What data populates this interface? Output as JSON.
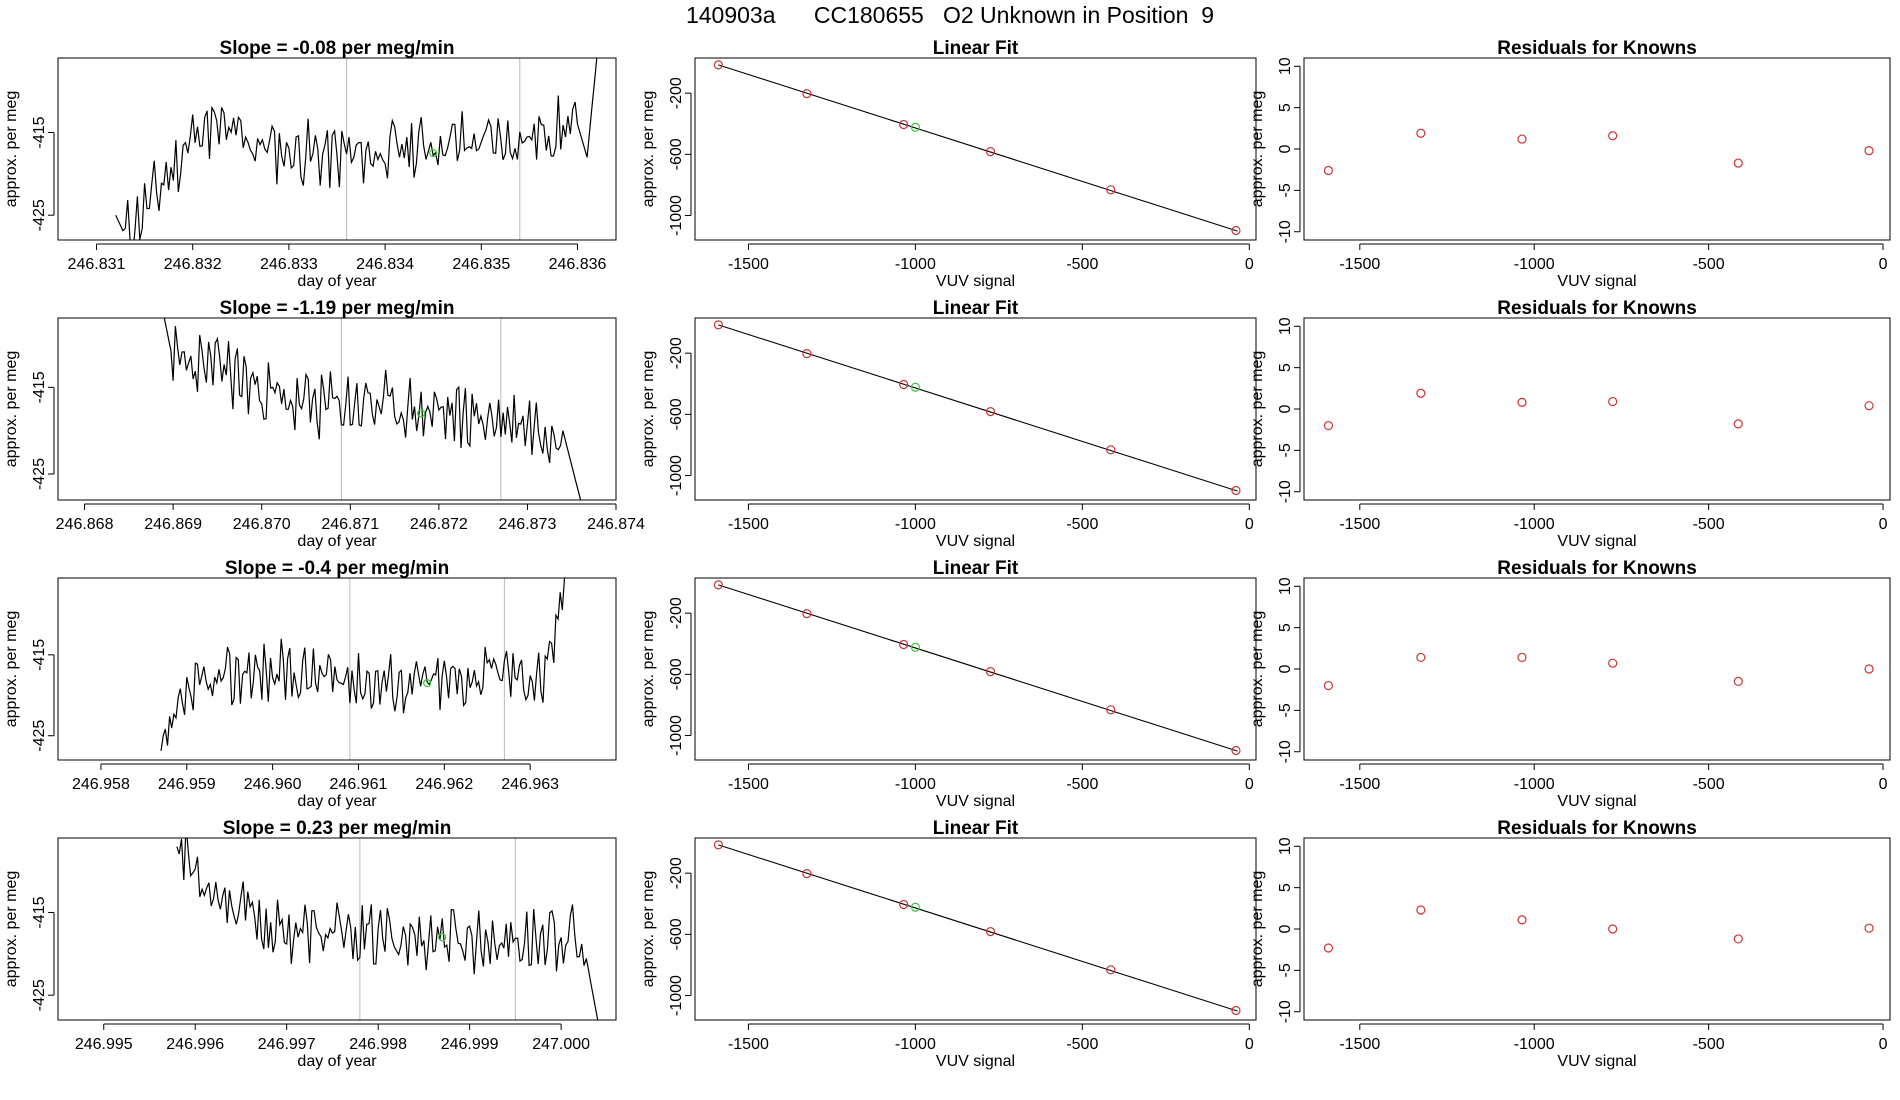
{
  "figure": {
    "title": "140903a      CC180655   O2 Unknown in Position  9"
  },
  "colors": {
    "trace": "#000000",
    "known_point": "#cc3333",
    "unknown_point": "#33cc33",
    "guide_line": "#bbbbbb"
  },
  "chart_data": [
    {
      "row": 1,
      "type": "line",
      "title": "Slope =  -0.08  per meg/min",
      "xlabel": "day of year",
      "ylabel": "approx. per meg",
      "xlim": [
        246.8306,
        246.8364
      ],
      "ylim": [
        -428,
        -406
      ],
      "xticks": [
        246.831,
        246.832,
        246.833,
        246.834,
        246.835,
        246.836
      ],
      "xtick_labels": [
        "246.831",
        "246.832",
        "246.833",
        "246.834",
        "246.835",
        "246.836"
      ],
      "yticks": [
        -415,
        -425
      ],
      "ytick_labels": [
        "-415",
        "-425"
      ],
      "vlines": [
        246.8336,
        246.8354
      ],
      "trace_x_range": [
        246.8312,
        246.8362
      ],
      "trace_seed": 11,
      "trace_drift": -0.2,
      "unknown_point": {
        "x": 246.8345,
        "y": -417.5
      },
      "segments": [
        {
          "x": 246.8312,
          "y": -425
        },
        {
          "x": 246.8313,
          "y": -427.5
        },
        {
          "x": 246.8317,
          "y": -421
        },
        {
          "x": 246.8321,
          "y": -414
        },
        {
          "x": 246.8328,
          "y": -417
        },
        {
          "x": 246.8336,
          "y": -418
        },
        {
          "x": 246.8345,
          "y": -416.5
        },
        {
          "x": 246.8354,
          "y": -416
        },
        {
          "x": 246.836,
          "y": -414
        },
        {
          "x": 246.8361,
          "y": -418
        },
        {
          "x": 246.8362,
          "y": -406
        }
      ]
    },
    {
      "row": 1,
      "type": "line",
      "title": "Linear Fit",
      "xlabel": "VUV signal",
      "ylabel": "approx. per meg",
      "xlim": [
        -1660,
        20
      ],
      "ylim": [
        -1160,
        30
      ],
      "xticks": [
        -1500,
        -1000,
        -500,
        0
      ],
      "xtick_labels": [
        "-1500",
        "-1000",
        "-500",
        "0"
      ],
      "yticks": [
        -200,
        -600,
        -1000
      ],
      "ytick_labels": [
        "-200",
        "-600",
        "-1000"
      ],
      "line": {
        "x": [
          -1590,
          -35
        ],
        "y": [
          -15,
          -1102
        ]
      },
      "knowns": [
        {
          "x": -1590,
          "y": -15
        },
        {
          "x": -1325,
          "y": -203
        },
        {
          "x": -1035,
          "y": -405
        },
        {
          "x": -775,
          "y": -582
        },
        {
          "x": -415,
          "y": -832
        },
        {
          "x": -40,
          "y": -1098
        }
      ],
      "unknown": {
        "x": -1000,
        "y": -423
      }
    },
    {
      "row": 1,
      "type": "scatter",
      "title": "Residuals for Knowns",
      "xlabel": "VUV signal",
      "ylabel": "approx. per meg",
      "xlim": [
        -1660,
        20
      ],
      "ylim": [
        -11,
        11
      ],
      "xticks": [
        -1500,
        -1000,
        -500,
        0
      ],
      "xtick_labels": [
        "-1500",
        "-1000",
        "-500",
        "0"
      ],
      "yticks": [
        10,
        5,
        0,
        -5,
        -10
      ],
      "ytick_labels": [
        "10",
        "5",
        "0",
        "-5",
        "-10"
      ],
      "points": [
        {
          "x": -1590,
          "y": -2.6
        },
        {
          "x": -1325,
          "y": 1.9
        },
        {
          "x": -1035,
          "y": 1.2
        },
        {
          "x": -775,
          "y": 1.6
        },
        {
          "x": -415,
          "y": -1.7
        },
        {
          "x": -40,
          "y": -0.2
        }
      ]
    },
    {
      "row": 2,
      "type": "line",
      "title": "Slope =  -1.19  per meg/min",
      "xlabel": "day of year",
      "ylabel": "approx. per meg",
      "xlim": [
        246.8677,
        246.874
      ],
      "ylim": [
        -428,
        -407
      ],
      "xticks": [
        246.868,
        246.869,
        246.87,
        246.871,
        246.872,
        246.873,
        246.874
      ],
      "xtick_labels": [
        "246.868",
        "246.869",
        "246.870",
        "246.871",
        "246.872",
        "246.873",
        "246.874"
      ],
      "yticks": [
        -415,
        -425
      ],
      "ytick_labels": [
        "-415",
        "-425"
      ],
      "vlines": [
        246.8709,
        246.8727
      ],
      "trace_x_range": [
        246.8689,
        246.8736
      ],
      "trace_seed": 23,
      "trace_drift": -1.0,
      "unknown_point": {
        "x": 246.8718,
        "y": -418
      },
      "segments": [
        {
          "x": 246.8689,
          "y": -407
        },
        {
          "x": 246.869,
          "y": -412
        },
        {
          "x": 246.8696,
          "y": -413
        },
        {
          "x": 246.8703,
          "y": -417
        },
        {
          "x": 246.8712,
          "y": -417
        },
        {
          "x": 246.872,
          "y": -418
        },
        {
          "x": 246.8729,
          "y": -419
        },
        {
          "x": 246.8734,
          "y": -420
        },
        {
          "x": 246.8735,
          "y": -424
        },
        {
          "x": 246.8736,
          "y": -428
        }
      ]
    },
    {
      "row": 2,
      "type": "line",
      "title": "Linear Fit",
      "xlabel": "VUV signal",
      "ylabel": "approx. per meg",
      "xlim": [
        -1660,
        20
      ],
      "ylim": [
        -1160,
        30
      ],
      "xticks": [
        -1500,
        -1000,
        -500,
        0
      ],
      "xtick_labels": [
        "-1500",
        "-1000",
        "-500",
        "0"
      ],
      "yticks": [
        -200,
        -600,
        -1000
      ],
      "ytick_labels": [
        "-200",
        "-600",
        "-1000"
      ],
      "line": {
        "x": [
          -1590,
          -35
        ],
        "y": [
          -15,
          -1102
        ]
      },
      "knowns": [
        {
          "x": -1590,
          "y": -15
        },
        {
          "x": -1325,
          "y": -203
        },
        {
          "x": -1035,
          "y": -405
        },
        {
          "x": -775,
          "y": -582
        },
        {
          "x": -415,
          "y": -832
        },
        {
          "x": -40,
          "y": -1098
        }
      ],
      "unknown": {
        "x": -1000,
        "y": -423
      }
    },
    {
      "row": 2,
      "type": "scatter",
      "title": "Residuals for Knowns",
      "xlabel": "VUV signal",
      "ylabel": "approx. per meg",
      "xlim": [
        -1660,
        20
      ],
      "ylim": [
        -11,
        11
      ],
      "xticks": [
        -1500,
        -1000,
        -500,
        0
      ],
      "xtick_labels": [
        "-1500",
        "-1000",
        "-500",
        "0"
      ],
      "yticks": [
        10,
        5,
        0,
        -5,
        -10
      ],
      "ytick_labels": [
        "10",
        "5",
        "0",
        "-5",
        "-10"
      ],
      "points": [
        {
          "x": -1590,
          "y": -2.0
        },
        {
          "x": -1325,
          "y": 1.9
        },
        {
          "x": -1035,
          "y": 0.8
        },
        {
          "x": -775,
          "y": 0.9
        },
        {
          "x": -415,
          "y": -1.8
        },
        {
          "x": -40,
          "y": 0.4
        }
      ]
    },
    {
      "row": 3,
      "type": "line",
      "title": "Slope =  -0.4  per meg/min",
      "xlabel": "day of year",
      "ylabel": "approx. per meg",
      "xlim": [
        246.9575,
        246.964
      ],
      "ylim": [
        -428,
        -405.5
      ],
      "xticks": [
        246.958,
        246.959,
        246.96,
        246.961,
        246.962,
        246.963
      ],
      "xtick_labels": [
        "246.958",
        "246.959",
        "246.960",
        "246.961",
        "246.962",
        "246.963"
      ],
      "yticks": [
        -415,
        -425
      ],
      "ytick_labels": [
        "-415",
        "-425"
      ],
      "vlines": [
        246.9609,
        246.9627
      ],
      "trace_x_range": [
        246.9587,
        246.9634
      ],
      "trace_seed": 37,
      "trace_drift": -0.3,
      "unknown_point": {
        "x": 246.9618,
        "y": -418.5
      },
      "segments": [
        {
          "x": 246.9587,
          "y": -428
        },
        {
          "x": 246.959,
          "y": -420
        },
        {
          "x": 246.9597,
          "y": -417
        },
        {
          "x": 246.9609,
          "y": -418
        },
        {
          "x": 246.9618,
          "y": -418.5
        },
        {
          "x": 246.9627,
          "y": -417
        },
        {
          "x": 246.9632,
          "y": -418
        },
        {
          "x": 246.9634,
          "y": -405.5
        }
      ]
    },
    {
      "row": 3,
      "type": "line",
      "title": "Linear Fit",
      "xlabel": "VUV signal",
      "ylabel": "approx. per meg",
      "xlim": [
        -1660,
        20
      ],
      "ylim": [
        -1160,
        30
      ],
      "xticks": [
        -1500,
        -1000,
        -500,
        0
      ],
      "xtick_labels": [
        "-1500",
        "-1000",
        "-500",
        "0"
      ],
      "yticks": [
        -200,
        -600,
        -1000
      ],
      "ytick_labels": [
        "-200",
        "-600",
        "-1000"
      ],
      "line": {
        "x": [
          -1590,
          -35
        ],
        "y": [
          -15,
          -1102
        ]
      },
      "knowns": [
        {
          "x": -1590,
          "y": -15
        },
        {
          "x": -1325,
          "y": -203
        },
        {
          "x": -1035,
          "y": -405
        },
        {
          "x": -775,
          "y": -582
        },
        {
          "x": -415,
          "y": -832
        },
        {
          "x": -40,
          "y": -1098
        }
      ],
      "unknown": {
        "x": -1000,
        "y": -423
      }
    },
    {
      "row": 3,
      "type": "scatter",
      "title": "Residuals for Knowns",
      "xlabel": "VUV signal",
      "ylabel": "approx. per meg",
      "xlim": [
        -1660,
        20
      ],
      "ylim": [
        -11,
        11
      ],
      "xticks": [
        -1500,
        -1000,
        -500,
        0
      ],
      "xtick_labels": [
        "-1500",
        "-1000",
        "-500",
        "0"
      ],
      "yticks": [
        10,
        5,
        0,
        -5,
        -10
      ],
      "ytick_labels": [
        "10",
        "5",
        "0",
        "-5",
        "-10"
      ],
      "points": [
        {
          "x": -1590,
          "y": -2.0
        },
        {
          "x": -1325,
          "y": 1.4
        },
        {
          "x": -1035,
          "y": 1.4
        },
        {
          "x": -775,
          "y": 0.7
        },
        {
          "x": -415,
          "y": -1.5
        },
        {
          "x": -40,
          "y": 0.0
        }
      ]
    },
    {
      "row": 4,
      "type": "line",
      "title": "Slope =  0.23  per meg/min",
      "xlabel": "day of year",
      "ylabel": "approx. per meg",
      "xlim": [
        246.9945,
        247.0006
      ],
      "ylim": [
        -428,
        -406
      ],
      "xticks": [
        246.995,
        246.996,
        246.997,
        246.998,
        246.999,
        247.0
      ],
      "xtick_labels": [
        "246.995",
        "246.996",
        "246.997",
        "246.998",
        "246.999",
        "247.000"
      ],
      "yticks": [
        -415,
        -425
      ],
      "ytick_labels": [
        "-415",
        "-425"
      ],
      "vlines": [
        246.9978,
        246.9995
      ],
      "trace_x_range": [
        246.9958,
        247.0004
      ],
      "trace_seed": 53,
      "trace_drift": 0.2,
      "unknown_point": {
        "x": 246.9987,
        "y": -418
      },
      "segments": [
        {
          "x": 246.9958,
          "y": -406
        },
        {
          "x": 246.996,
          "y": -410
        },
        {
          "x": 246.9963,
          "y": -413
        },
        {
          "x": 246.9968,
          "y": -417
        },
        {
          "x": 246.9978,
          "y": -418
        },
        {
          "x": 246.9987,
          "y": -418
        },
        {
          "x": 246.9995,
          "y": -418.5
        },
        {
          "x": 247.0001,
          "y": -418
        },
        {
          "x": 247.0003,
          "y": -422
        },
        {
          "x": 247.0004,
          "y": -428
        }
      ]
    },
    {
      "row": 4,
      "type": "line",
      "title": "Linear Fit",
      "xlabel": "VUV signal",
      "ylabel": "approx. per meg",
      "xlim": [
        -1660,
        20
      ],
      "ylim": [
        -1160,
        30
      ],
      "xticks": [
        -1500,
        -1000,
        -500,
        0
      ],
      "xtick_labels": [
        "-1500",
        "-1000",
        "-500",
        "0"
      ],
      "yticks": [
        -200,
        -600,
        -1000
      ],
      "ytick_labels": [
        "-200",
        "-600",
        "-1000"
      ],
      "line": {
        "x": [
          -1590,
          -35
        ],
        "y": [
          -15,
          -1102
        ]
      },
      "knowns": [
        {
          "x": -1590,
          "y": -15
        },
        {
          "x": -1325,
          "y": -203
        },
        {
          "x": -1035,
          "y": -405
        },
        {
          "x": -775,
          "y": -582
        },
        {
          "x": -415,
          "y": -832
        },
        {
          "x": -40,
          "y": -1098
        }
      ],
      "unknown": {
        "x": -1000,
        "y": -423
      }
    },
    {
      "row": 4,
      "type": "scatter",
      "title": "Residuals for Knowns",
      "xlabel": "VUV signal",
      "ylabel": "approx. per meg",
      "xlim": [
        -1660,
        20
      ],
      "ylim": [
        -11,
        11
      ],
      "xticks": [
        -1500,
        -1000,
        -500,
        0
      ],
      "xtick_labels": [
        "-1500",
        "-1000",
        "-500",
        "0"
      ],
      "yticks": [
        10,
        5,
        0,
        -5,
        -10
      ],
      "ytick_labels": [
        "10",
        "5",
        "0",
        "-5",
        "-10"
      ],
      "points": [
        {
          "x": -1590,
          "y": -2.3
        },
        {
          "x": -1325,
          "y": 2.3
        },
        {
          "x": -1035,
          "y": 1.1
        },
        {
          "x": -775,
          "y": 0.0
        },
        {
          "x": -415,
          "y": -1.2
        },
        {
          "x": -40,
          "y": 0.1
        }
      ]
    }
  ]
}
